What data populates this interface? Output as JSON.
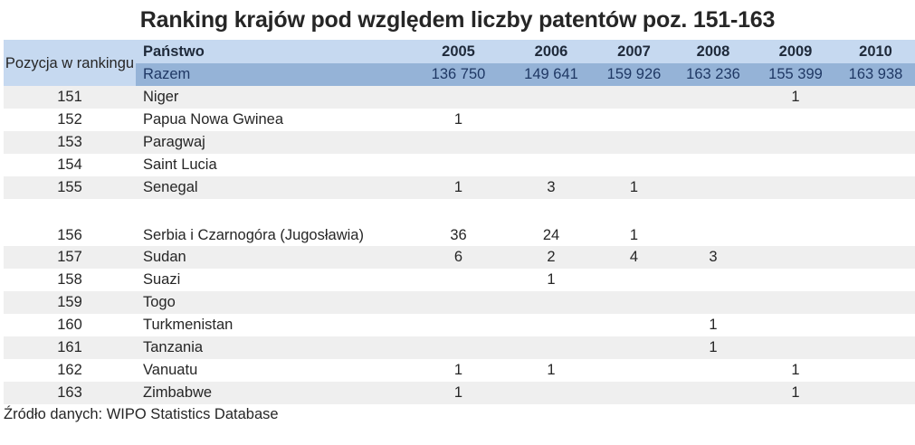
{
  "title": "Ranking krajów pod względem liczby patentów poz. 151-163",
  "header": {
    "position_label": "Pozycja w rankingu",
    "country_label": "Państwo",
    "years": [
      "2005",
      "2006",
      "2007",
      "2008",
      "2009",
      "2010"
    ],
    "total_label": "Razem",
    "totals": [
      "136 750",
      "149 641",
      "159 926",
      "163 236",
      "155 399",
      "163 938"
    ]
  },
  "rows": [
    {
      "pos": "151",
      "name": "Niger",
      "v": [
        "",
        "",
        "",
        "",
        "1",
        ""
      ]
    },
    {
      "pos": "152",
      "name": "Papua Nowa Gwinea",
      "v": [
        "1",
        "",
        "",
        "",
        "",
        ""
      ]
    },
    {
      "pos": "153",
      "name": "Paragwaj",
      "v": [
        "",
        "",
        "",
        "",
        "",
        ""
      ]
    },
    {
      "pos": "154",
      "name": "Saint Lucia",
      "v": [
        "",
        "",
        "",
        "",
        "",
        ""
      ]
    },
    {
      "pos": "155",
      "name": "Senegal",
      "v": [
        "1",
        "3",
        "1",
        "",
        "",
        ""
      ]
    },
    {
      "pos": "156",
      "name": "Serbia i Czarnogóra (Jugosławia)",
      "v": [
        "36",
        "24",
        "1",
        "",
        "",
        ""
      ]
    },
    {
      "pos": "157",
      "name": "Sudan",
      "v": [
        "6",
        "2",
        "4",
        "3",
        "",
        ""
      ]
    },
    {
      "pos": "158",
      "name": "Suazi",
      "v": [
        "",
        "1",
        "",
        "",
        "",
        ""
      ]
    },
    {
      "pos": "159",
      "name": "Togo",
      "v": [
        "",
        "",
        "",
        "",
        "",
        ""
      ]
    },
    {
      "pos": "160",
      "name": "Turkmenistan",
      "v": [
        "",
        "",
        "",
        "1",
        "",
        ""
      ]
    },
    {
      "pos": "161",
      "name": "Tanzania",
      "v": [
        "",
        "",
        "",
        "1",
        "",
        ""
      ]
    },
    {
      "pos": "162",
      "name": "Vanuatu",
      "v": [
        "1",
        "1",
        "",
        "",
        "1",
        ""
      ]
    },
    {
      "pos": "163",
      "name": "Zimbabwe",
      "v": [
        "1",
        "",
        "",
        "",
        "1",
        ""
      ]
    }
  ],
  "source": "Źródło danych: WIPO Statistics Database",
  "colors": {
    "header_light": "#c6d9f0",
    "header_dark": "#95b3d7",
    "row_shade": "#efefef"
  }
}
